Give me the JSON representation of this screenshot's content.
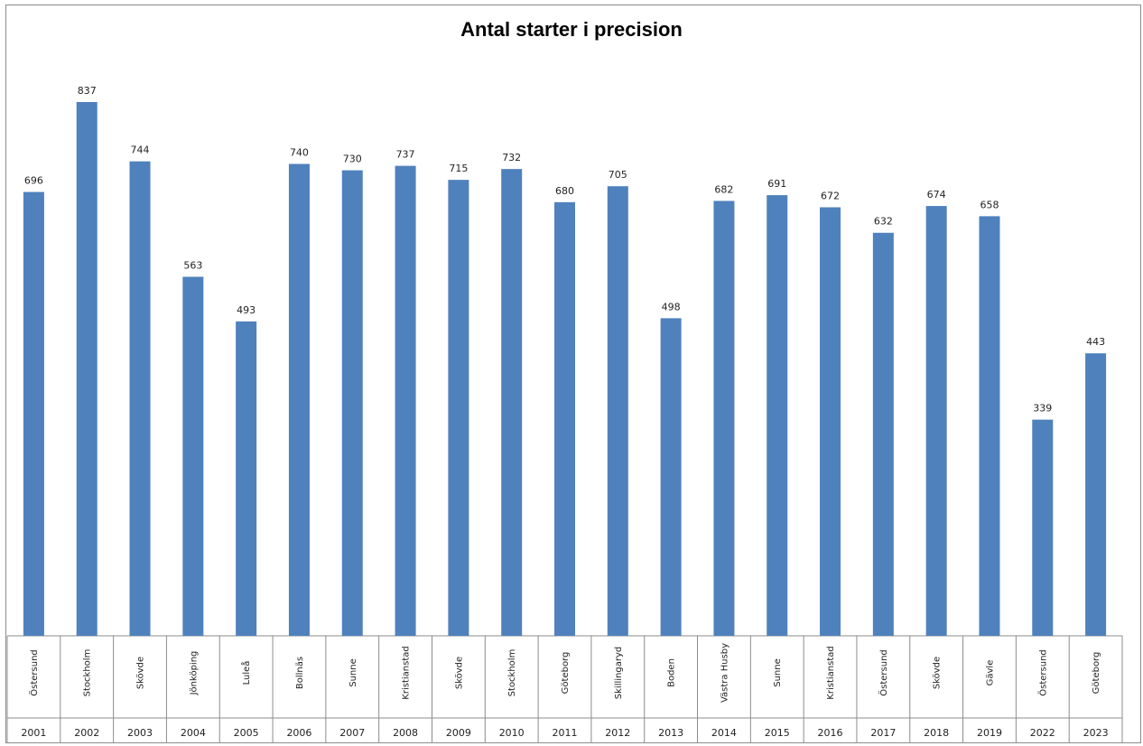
{
  "chart_data": {
    "type": "bar",
    "title": "Antal starter i precision",
    "categories": [
      "2001",
      "2002",
      "2003",
      "2004",
      "2005",
      "2006",
      "2007",
      "2008",
      "2009",
      "2010",
      "2011",
      "2012",
      "2013",
      "2014",
      "2015",
      "2016",
      "2017",
      "2018",
      "2019",
      "2022",
      "2023"
    ],
    "locations": [
      "Östersund",
      "Stockholm",
      "Skövde",
      "Jönköping",
      "Luleå",
      "Bollnäs",
      "Sunne",
      "Kristianstad",
      "Skövde",
      "Stockholm",
      "Göteborg",
      "Skillingaryd",
      "Boden",
      "Västra Husby",
      "Sunne",
      "Kristianstad",
      "Östersund",
      "Skövde",
      "Gävle",
      "Östersund",
      "Göteborg"
    ],
    "values": [
      696,
      837,
      744,
      563,
      493,
      740,
      730,
      737,
      715,
      732,
      680,
      705,
      498,
      682,
      691,
      672,
      632,
      674,
      658,
      339,
      443
    ],
    "ylim": [
      0,
      837
    ],
    "grid": false,
    "legend": "none",
    "bar_color": "#4f81bd"
  }
}
